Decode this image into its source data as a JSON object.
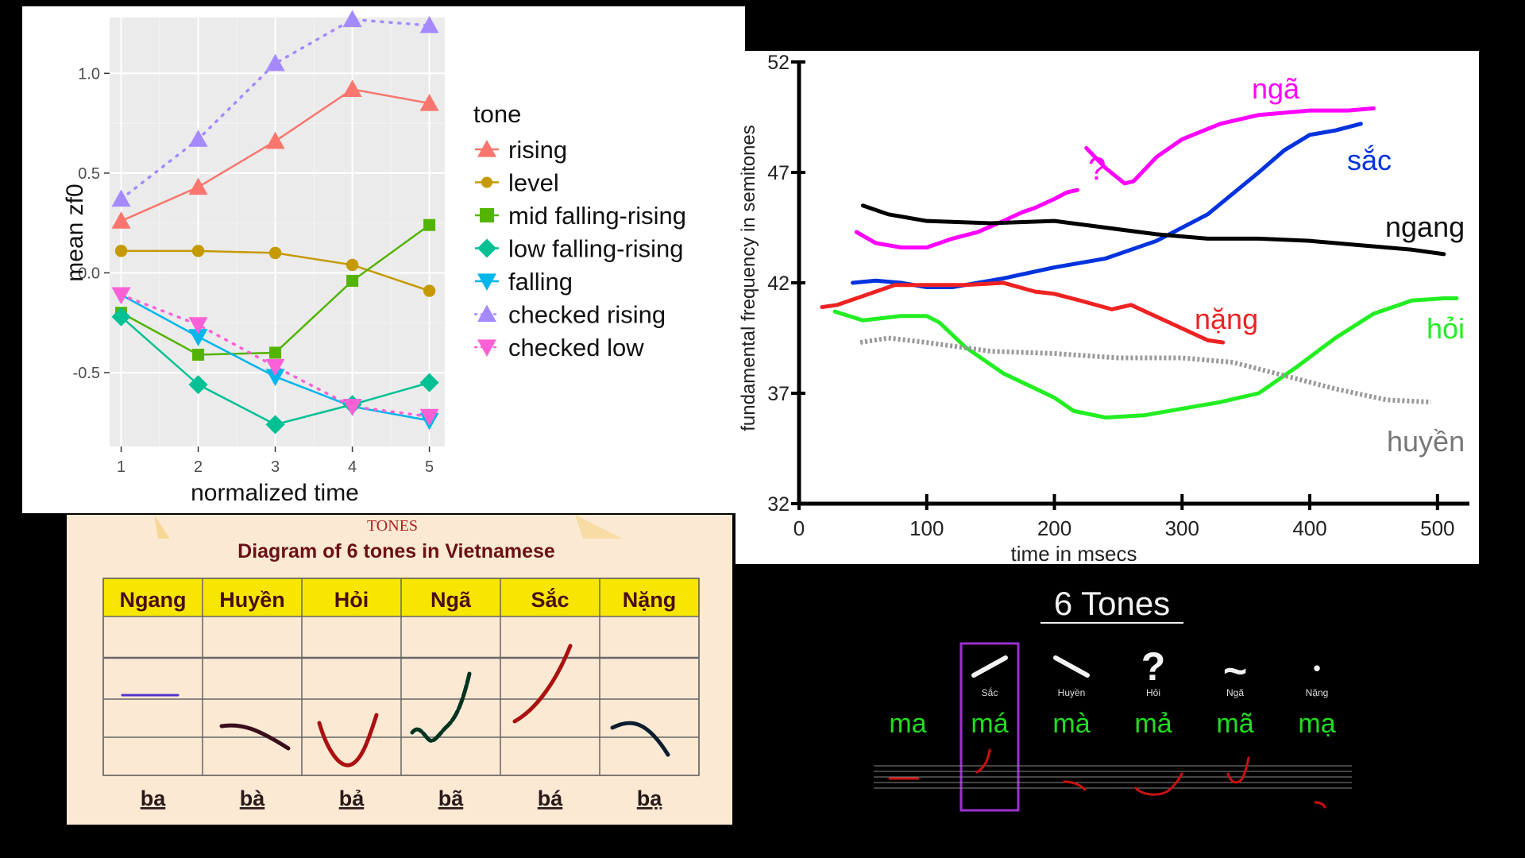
{
  "chart_data": [
    {
      "type": "line",
      "xlabel": "normalized time",
      "ylabel": "mean zf0",
      "x": [
        1,
        2,
        3,
        4,
        5
      ],
      "x_ticks": [
        "1",
        "2",
        "3",
        "4",
        "5"
      ],
      "y_ticks": [
        "-0.5",
        "0.0",
        "0.5",
        "1.0"
      ],
      "xlim": [
        0.85,
        5.2
      ],
      "ylim": [
        -0.87,
        1.28
      ],
      "grid": true,
      "legend_title": "tone",
      "legend_position": "right",
      "series": [
        {
          "name": "rising",
          "values": [
            0.26,
            0.43,
            0.66,
            0.92,
            0.85
          ],
          "color": "#f8766d",
          "marker": "triangle-up",
          "dash": "solid"
        },
        {
          "name": "level",
          "values": [
            0.11,
            0.11,
            0.1,
            0.04,
            -0.09
          ],
          "color": "#c49a00",
          "marker": "circle",
          "dash": "solid"
        },
        {
          "name": "mid falling-rising",
          "values": [
            -0.2,
            -0.41,
            -0.4,
            -0.04,
            0.24
          ],
          "color": "#53b400",
          "marker": "square",
          "dash": "solid"
        },
        {
          "name": "low falling-rising",
          "values": [
            -0.22,
            -0.56,
            -0.76,
            -0.66,
            -0.55
          ],
          "color": "#00c094",
          "marker": "diamond",
          "dash": "solid"
        },
        {
          "name": "falling",
          "values": [
            -0.11,
            -0.32,
            -0.52,
            -0.67,
            -0.74
          ],
          "color": "#00b6eb",
          "marker": "triangle-down",
          "dash": "solid"
        },
        {
          "name": "checked rising",
          "values": [
            0.37,
            0.67,
            1.05,
            1.27,
            1.24
          ],
          "color": "#a58aff",
          "marker": "triangle-up",
          "dash": "dotted"
        },
        {
          "name": "checked low",
          "values": [
            -0.11,
            -0.26,
            -0.47,
            -0.67,
            -0.72
          ],
          "color": "#fb61d7",
          "marker": "triangle-down",
          "dash": "dotted"
        }
      ]
    },
    {
      "type": "line",
      "ylabel": "fundamental frequency in semitones",
      "xlabel": "time in msecs",
      "x_ticks": [
        "0",
        "100",
        "200",
        "300",
        "400",
        "500"
      ],
      "y_ticks": [
        "32",
        "37",
        "42",
        "47",
        "52"
      ],
      "xlim": [
        0,
        525
      ],
      "ylim": [
        32,
        52
      ],
      "series": [
        {
          "name": "ngã",
          "color": "#ff00ff",
          "x": [
            45,
            60,
            80,
            100,
            120,
            140,
            160,
            175,
            185,
            200,
            210,
            218
          ],
          "y": [
            44.3,
            43.8,
            43.6,
            43.6,
            44.0,
            44.3,
            44.8,
            45.2,
            45.4,
            45.8,
            46.1,
            46.2
          ],
          "x2": [
            225,
            240,
            255,
            262,
            280,
            300,
            330,
            360,
            400,
            430,
            450
          ],
          "y2": [
            48.1,
            47.2,
            46.5,
            46.6,
            47.7,
            48.5,
            49.2,
            49.6,
            49.8,
            49.8,
            49.9
          ]
        },
        {
          "name": "sắc",
          "color": "#0033dd",
          "x": [
            42,
            60,
            80,
            100,
            120,
            140,
            160,
            200,
            240,
            280,
            320,
            360,
            380,
            400,
            420,
            440
          ],
          "y": [
            42.0,
            42.1,
            42.0,
            41.8,
            41.8,
            42.0,
            42.2,
            42.7,
            43.1,
            43.9,
            45.1,
            47.0,
            48.0,
            48.7,
            48.9,
            49.2
          ]
        },
        {
          "name": "ngang",
          "color": "#000000",
          "x": [
            50,
            70,
            100,
            150,
            200,
            240,
            280,
            320,
            360,
            400,
            440,
            480,
            505
          ],
          "y": [
            45.5,
            45.1,
            44.8,
            44.7,
            44.8,
            44.5,
            44.2,
            44.0,
            44.0,
            43.9,
            43.7,
            43.5,
            43.3
          ]
        },
        {
          "name": "nặng",
          "color": "#ee2222",
          "x": [
            18,
            30,
            50,
            75,
            100,
            130,
            160,
            185,
            200,
            220,
            245,
            260,
            275,
            290,
            305,
            320,
            332
          ],
          "y": [
            40.9,
            41.0,
            41.4,
            41.9,
            41.9,
            41.9,
            42.0,
            41.6,
            41.5,
            41.2,
            40.8,
            41.0,
            40.6,
            40.2,
            39.8,
            39.4,
            39.3
          ]
        },
        {
          "name": "hỏi",
          "color": "#22ee22",
          "x": [
            28,
            50,
            80,
            100,
            110,
            130,
            160,
            200,
            215,
            240,
            270,
            300,
            330,
            360,
            390,
            420,
            450,
            480,
            505,
            515
          ],
          "y": [
            40.7,
            40.3,
            40.5,
            40.5,
            40.2,
            39.1,
            37.9,
            36.8,
            36.2,
            35.9,
            36.0,
            36.3,
            36.6,
            37.0,
            38.2,
            39.5,
            40.6,
            41.2,
            41.3,
            41.3
          ]
        },
        {
          "name": "huyền",
          "color": "#999999",
          "x": [
            48,
            70,
            100,
            150,
            200,
            250,
            300,
            340,
            380,
            420,
            460,
            495
          ],
          "y": [
            39.3,
            39.5,
            39.3,
            38.9,
            38.8,
            38.6,
            38.6,
            38.4,
            37.8,
            37.2,
            36.7,
            36.6
          ]
        }
      ],
      "annotations": [
        "?"
      ]
    }
  ],
  "tone_diagram": {
    "header": "TONES",
    "title": "Diagram of 6 tones in Vietnamese",
    "columns": [
      "Ngang",
      "Huyền",
      "Hỏi",
      "Ngã",
      "Sắc",
      "Nặng"
    ],
    "examples": [
      "ba",
      "bà",
      "bả",
      "bã",
      "bá",
      "bạ"
    ],
    "line_colors": [
      "#5533cc",
      "#3a0d1a",
      "#aa1111",
      "#003322",
      "#aa1111",
      "#0b1e2e"
    ]
  },
  "tones_card": {
    "title": "6 Tones",
    "marks": [
      {
        "symbol": "",
        "name": "",
        "word": "ma"
      },
      {
        "symbol": "sac",
        "name": "Sắc",
        "word": "má"
      },
      {
        "symbol": "huyen",
        "name": "Huyền",
        "word": "mà"
      },
      {
        "symbol": "?",
        "name": "Hỏi",
        "word": "mả"
      },
      {
        "symbol": "~",
        "name": "Ngã",
        "word": "mã"
      },
      {
        "symbol": "•",
        "name": "Nặng",
        "word": "mạ"
      }
    ],
    "highlighted_index": 1,
    "highlight_color": "#9b30d0",
    "word_color": "#22dd22",
    "stroke_color": "#cc1111"
  }
}
